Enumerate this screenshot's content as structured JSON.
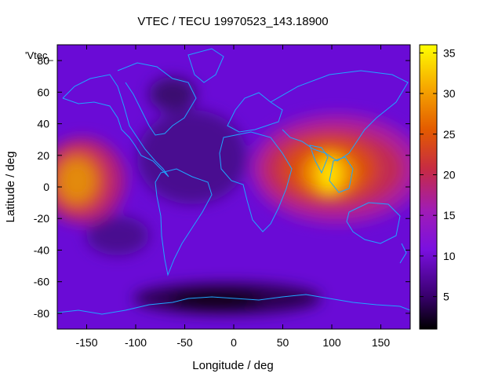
{
  "chart_data": {
    "type": "heatmap",
    "title": "VTEC / TECU 19970523_143.18900",
    "xlabel": "Longitude / deg",
    "ylabel": "Latitude / deg",
    "legend_label": "'Vtec_",
    "legend_position": "top-left",
    "xlim": [
      -180,
      180
    ],
    "ylim": [
      -90,
      90
    ],
    "x_ticks": [
      -150,
      -100,
      -50,
      0,
      50,
      100,
      150
    ],
    "y_ticks": [
      -80,
      -60,
      -40,
      -20,
      0,
      20,
      40,
      60,
      80
    ],
    "colorbar": {
      "min": 1,
      "max": 36,
      "ticks": [
        5,
        10,
        15,
        20,
        25,
        30,
        35
      ]
    },
    "overlay": "coastlines",
    "features": [
      {
        "name": "pacific-peak",
        "lon": -160,
        "lat": 5,
        "value": 26
      },
      {
        "name": "asia-peak",
        "lon": 100,
        "lat": 5,
        "value": 35
      },
      {
        "name": "antarctic-low",
        "lon": -20,
        "lat": -72,
        "value": 2
      }
    ]
  },
  "colors": {
    "background": "#6a0bd6",
    "coastline": "#1fa6ff",
    "axis": "#000000"
  }
}
